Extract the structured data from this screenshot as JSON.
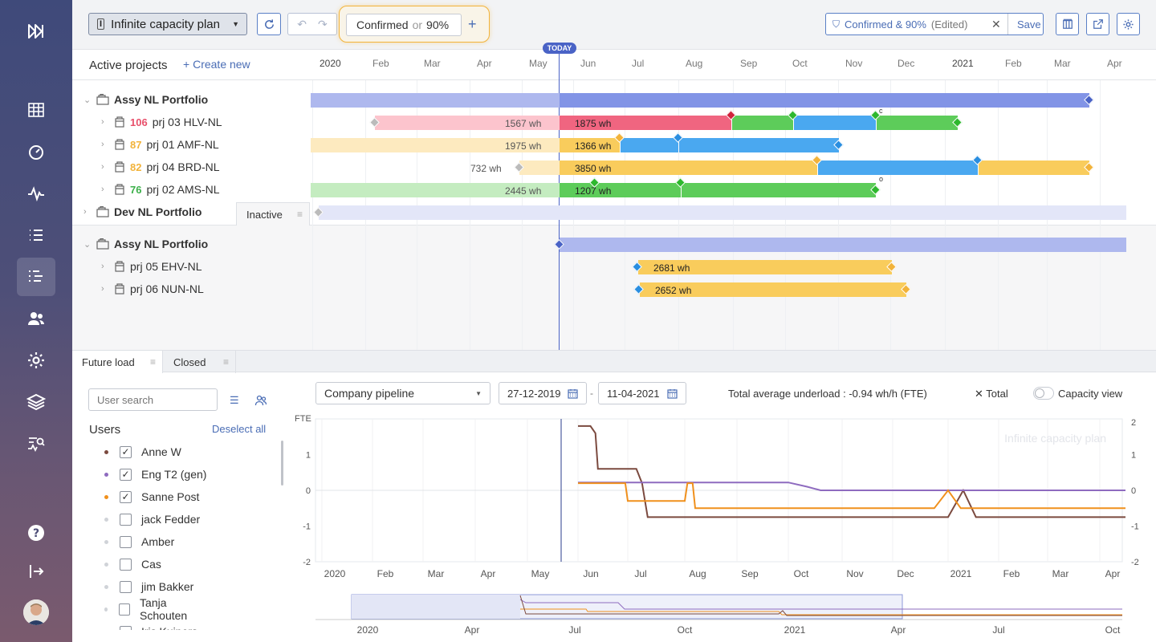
{
  "toolbar": {
    "plan_name": "Infinite capacity plan",
    "scenario": "Confirmed",
    "scenario_or": "or",
    "scenario_pct": "90%",
    "filter_label": "Confirmed & 90%",
    "filter_state": "(Edited)",
    "save_label": "Save"
  },
  "gantt": {
    "today_label": "TODAY",
    "section_title": "Active projects",
    "create_new": "Create new",
    "months": [
      "2020",
      "Feb",
      "Mar",
      "Apr",
      "May",
      "Jun",
      "Jul",
      "Aug",
      "Sep",
      "Oct",
      "Nov",
      "Dec",
      "2021",
      "Feb",
      "Mar",
      "Apr"
    ],
    "rows": [
      {
        "label": "Assy NL Portfolio"
      },
      {
        "score": "106",
        "label": "prj 03 HLV-NL",
        "wh_before": "1567 wh",
        "wh_after": "1875 wh"
      },
      {
        "score": "87",
        "label": "prj 01 AMF-NL",
        "wh_before": "1975 wh",
        "wh_after": "1366 wh"
      },
      {
        "score": "82",
        "label": "prj 04 BRD-NL",
        "wh_before": "732 wh",
        "wh_after": "3850 wh"
      },
      {
        "score": "76",
        "label": "prj 02 AMS-NL",
        "wh_before": "2445 wh",
        "wh_after": "1207 wh"
      },
      {
        "label": "Dev NL Portfolio"
      }
    ],
    "inactive_tab": "Inactive",
    "inactive_rows": [
      {
        "label": "Assy NL Portfolio"
      },
      {
        "label": "prj 05 EHV-NL",
        "wh": "2681 wh"
      },
      {
        "label": "prj 06 NUN-NL",
        "wh": "2652 wh"
      }
    ],
    "markers": [
      "c",
      "o"
    ]
  },
  "bottom": {
    "tabs": [
      "Future load",
      "Closed"
    ],
    "user_search_placeholder": "User search",
    "users_title": "Users",
    "deselect_all": "Deselect all",
    "users": [
      {
        "name": "Anne W",
        "checked": true,
        "color": "#7b4a3f"
      },
      {
        "name": "Eng T2 (gen)",
        "checked": true,
        "color": "#8e6bbf"
      },
      {
        "name": "Sanne Post",
        "checked": true,
        "color": "#f0901c"
      },
      {
        "name": "jack Fedder",
        "checked": false,
        "color": "#d0d3d8"
      },
      {
        "name": "Amber",
        "checked": false,
        "color": "#d0d3d8"
      },
      {
        "name": "Cas",
        "checked": false,
        "color": "#d0d3d8"
      },
      {
        "name": "jim Bakker",
        "checked": false,
        "color": "#d0d3d8"
      },
      {
        "name": "Tanja Schouten",
        "checked": false,
        "color": "#d0d3d8"
      },
      {
        "name": "Iris Kuipers",
        "checked": false,
        "color": "#d0d3d8"
      }
    ],
    "pipeline_select": "Company pipeline",
    "date_from": "27-12-2019",
    "date_sep": "-",
    "date_to": "11-04-2021",
    "total_underload": "Total average underload : -0.94 wh/h (FTE)",
    "total_toggle": "Total",
    "capacity_view": "Capacity view"
  },
  "chart_data": {
    "type": "line",
    "title": "",
    "watermark": "Infinite capacity plan",
    "ylabel": "FTE",
    "ylim": [
      -2,
      2
    ],
    "yticks": [
      "1",
      "0",
      "-1",
      "-2"
    ],
    "yticks_right": [
      "2",
      "1",
      "0",
      "-1",
      "-2"
    ],
    "xticks": [
      "2020",
      "Feb",
      "Mar",
      "Apr",
      "May",
      "Jun",
      "Jul",
      "Aug",
      "Sep",
      "Oct",
      "Nov",
      "Dec",
      "2021",
      "Feb",
      "Mar",
      "Apr"
    ],
    "x_range_months": [
      0,
      15.5
    ],
    "series": [
      {
        "color": "#7b4a3f",
        "points": [
          [
            5.0,
            1.8
          ],
          [
            5.25,
            1.8
          ],
          [
            5.35,
            1.6
          ],
          [
            5.4,
            0.6
          ],
          [
            6.15,
            0.6
          ],
          [
            6.25,
            0.2
          ],
          [
            6.35,
            -0.75
          ],
          [
            12.0,
            -0.75
          ],
          [
            12.3,
            0.0
          ],
          [
            12.55,
            -0.75
          ],
          [
            15.5,
            -0.75
          ]
        ]
      },
      {
        "color": "#8e6bbf",
        "points": [
          [
            5.0,
            0.22
          ],
          [
            9.0,
            0.22
          ],
          [
            9.35,
            0.1
          ],
          [
            9.6,
            0.0
          ],
          [
            15.5,
            0.0
          ]
        ]
      },
      {
        "color": "#f0901c",
        "points": [
          [
            5.0,
            0.2
          ],
          [
            5.95,
            0.2
          ],
          [
            6.0,
            -0.3
          ],
          [
            7.0,
            -0.3
          ],
          [
            7.05,
            0.2
          ],
          [
            7.15,
            0.2
          ],
          [
            7.2,
            -0.5
          ],
          [
            11.75,
            -0.5
          ],
          [
            12.0,
            0.0
          ],
          [
            12.25,
            -0.5
          ],
          [
            15.5,
            -0.5
          ]
        ]
      }
    ],
    "navigator_ticks": [
      "2020",
      "Apr",
      "Jul",
      "Oct",
      "2021",
      "Apr",
      "Jul",
      "Oct"
    ]
  }
}
